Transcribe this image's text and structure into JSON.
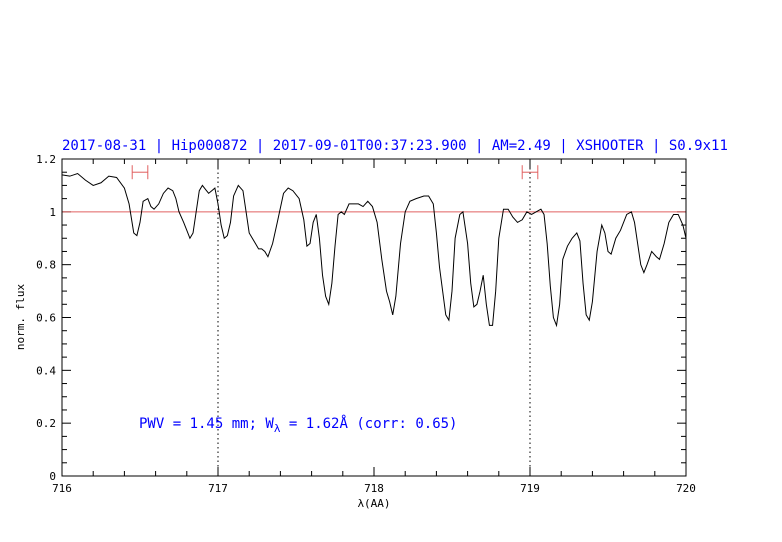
{
  "chart_data": {
    "type": "line",
    "title": "2017-08-31 | Hip000872 | 2017-09-01T00:37:23.900 | AM=2.49 | XSHOOTER | S0.9x11",
    "xlabel": "λ(AA)",
    "ylabel": "norm. flux",
    "xlim": [
      716,
      720
    ],
    "ylim": [
      0,
      1.2
    ],
    "x_ticks": [
      "716",
      "717",
      "718",
      "719",
      "720"
    ],
    "y_ticks": [
      "0",
      "0.2",
      "0.4",
      "0.6",
      "0.8",
      "1",
      "1.2"
    ],
    "reference_line": {
      "y": 1.0,
      "color": "#e06060"
    },
    "vertical_markers": [
      717,
      719
    ],
    "ranges": [
      {
        "x1": 716.45,
        "x2": 716.55,
        "y": 1.15,
        "color": "#e06060"
      },
      {
        "x1": 718.95,
        "x2": 719.05,
        "y": 1.15,
        "color": "#e06060"
      }
    ],
    "annotation": "PWV = 1.45 mm; W_λ = 1.62Å (corr: 0.65)",
    "series": [
      {
        "color": "#000000",
        "points": [
          [
            716.0,
            1.14
          ],
          [
            716.05,
            1.135
          ],
          [
            716.1,
            1.145
          ],
          [
            716.15,
            1.12
          ],
          [
            716.2,
            1.1
          ],
          [
            716.25,
            1.11
          ],
          [
            716.3,
            1.135
          ],
          [
            716.35,
            1.13
          ],
          [
            716.4,
            1.09
          ],
          [
            716.43,
            1.03
          ],
          [
            716.46,
            0.92
          ],
          [
            716.48,
            0.91
          ],
          [
            716.5,
            0.96
          ],
          [
            716.52,
            1.04
          ],
          [
            716.55,
            1.05
          ],
          [
            716.57,
            1.02
          ],
          [
            716.59,
            1.01
          ],
          [
            716.62,
            1.03
          ],
          [
            716.65,
            1.07
          ],
          [
            716.68,
            1.09
          ],
          [
            716.71,
            1.08
          ],
          [
            716.73,
            1.05
          ],
          [
            716.75,
            1.0
          ],
          [
            716.78,
            0.96
          ],
          [
            716.8,
            0.93
          ],
          [
            716.82,
            0.9
          ],
          [
            716.84,
            0.92
          ],
          [
            716.86,
            1.0
          ],
          [
            716.88,
            1.08
          ],
          [
            716.9,
            1.1
          ],
          [
            716.92,
            1.085
          ],
          [
            716.94,
            1.07
          ],
          [
            716.96,
            1.08
          ],
          [
            716.98,
            1.09
          ],
          [
            717.0,
            1.03
          ],
          [
            717.02,
            0.95
          ],
          [
            717.04,
            0.9
          ],
          [
            717.06,
            0.91
          ],
          [
            717.08,
            0.96
          ],
          [
            717.1,
            1.06
          ],
          [
            717.13,
            1.1
          ],
          [
            717.16,
            1.08
          ],
          [
            717.18,
            1.0
          ],
          [
            717.2,
            0.92
          ],
          [
            717.22,
            0.9
          ],
          [
            717.24,
            0.88
          ],
          [
            717.26,
            0.86
          ],
          [
            717.28,
            0.86
          ],
          [
            717.3,
            0.85
          ],
          [
            717.32,
            0.83
          ],
          [
            717.35,
            0.88
          ],
          [
            717.38,
            0.96
          ],
          [
            717.42,
            1.07
          ],
          [
            717.45,
            1.09
          ],
          [
            717.48,
            1.08
          ],
          [
            717.52,
            1.05
          ],
          [
            717.55,
            0.97
          ],
          [
            717.57,
            0.87
          ],
          [
            717.59,
            0.88
          ],
          [
            717.61,
            0.96
          ],
          [
            717.63,
            0.99
          ],
          [
            717.65,
            0.9
          ],
          [
            717.67,
            0.76
          ],
          [
            717.69,
            0.68
          ],
          [
            717.71,
            0.65
          ],
          [
            717.73,
            0.73
          ],
          [
            717.75,
            0.87
          ],
          [
            717.77,
            0.99
          ],
          [
            717.79,
            1.0
          ],
          [
            717.81,
            0.99
          ],
          [
            717.84,
            1.03
          ],
          [
            717.87,
            1.03
          ],
          [
            717.9,
            1.03
          ],
          [
            717.93,
            1.02
          ],
          [
            717.96,
            1.04
          ],
          [
            717.99,
            1.02
          ],
          [
            718.02,
            0.96
          ],
          [
            718.05,
            0.82
          ],
          [
            718.08,
            0.7
          ],
          [
            718.1,
            0.66
          ],
          [
            718.12,
            0.61
          ],
          [
            718.14,
            0.68
          ],
          [
            718.17,
            0.88
          ],
          [
            718.2,
            1.0
          ],
          [
            718.23,
            1.04
          ],
          [
            718.27,
            1.05
          ],
          [
            718.32,
            1.06
          ],
          [
            718.35,
            1.06
          ],
          [
            718.38,
            1.03
          ],
          [
            718.4,
            0.92
          ],
          [
            718.42,
            0.79
          ],
          [
            718.44,
            0.7
          ],
          [
            718.46,
            0.61
          ],
          [
            718.48,
            0.59
          ],
          [
            718.5,
            0.7
          ],
          [
            718.52,
            0.9
          ],
          [
            718.55,
            0.99
          ],
          [
            718.57,
            1.0
          ],
          [
            718.6,
            0.88
          ],
          [
            718.62,
            0.73
          ],
          [
            718.64,
            0.64
          ],
          [
            718.66,
            0.65
          ],
          [
            718.68,
            0.7
          ],
          [
            718.7,
            0.76
          ],
          [
            718.72,
            0.65
          ],
          [
            718.74,
            0.57
          ],
          [
            718.76,
            0.57
          ],
          [
            718.78,
            0.7
          ],
          [
            718.8,
            0.9
          ],
          [
            718.83,
            1.01
          ],
          [
            718.86,
            1.01
          ],
          [
            718.89,
            0.98
          ],
          [
            718.92,
            0.96
          ],
          [
            718.95,
            0.97
          ],
          [
            718.98,
            1.0
          ],
          [
            719.01,
            0.99
          ],
          [
            719.04,
            1.0
          ],
          [
            719.07,
            1.01
          ],
          [
            719.09,
            0.99
          ],
          [
            719.11,
            0.88
          ],
          [
            719.13,
            0.72
          ],
          [
            719.15,
            0.6
          ],
          [
            719.17,
            0.57
          ],
          [
            719.19,
            0.65
          ],
          [
            719.21,
            0.82
          ],
          [
            719.24,
            0.87
          ],
          [
            719.27,
            0.9
          ],
          [
            719.3,
            0.92
          ],
          [
            719.32,
            0.89
          ],
          [
            719.34,
            0.73
          ],
          [
            719.36,
            0.61
          ],
          [
            719.38,
            0.59
          ],
          [
            719.4,
            0.66
          ],
          [
            719.43,
            0.85
          ],
          [
            719.46,
            0.95
          ],
          [
            719.48,
            0.92
          ],
          [
            719.5,
            0.85
          ],
          [
            719.52,
            0.84
          ],
          [
            719.55,
            0.9
          ],
          [
            719.58,
            0.93
          ],
          [
            719.62,
            0.99
          ],
          [
            719.65,
            1.0
          ],
          [
            719.67,
            0.96
          ],
          [
            719.69,
            0.88
          ],
          [
            719.71,
            0.8
          ],
          [
            719.73,
            0.77
          ],
          [
            719.75,
            0.8
          ],
          [
            719.78,
            0.85
          ],
          [
            719.81,
            0.83
          ],
          [
            719.83,
            0.82
          ],
          [
            719.86,
            0.88
          ],
          [
            719.89,
            0.96
          ],
          [
            719.92,
            0.99
          ],
          [
            719.95,
            0.99
          ],
          [
            719.98,
            0.95
          ],
          [
            720.0,
            0.9
          ]
        ]
      }
    ]
  }
}
